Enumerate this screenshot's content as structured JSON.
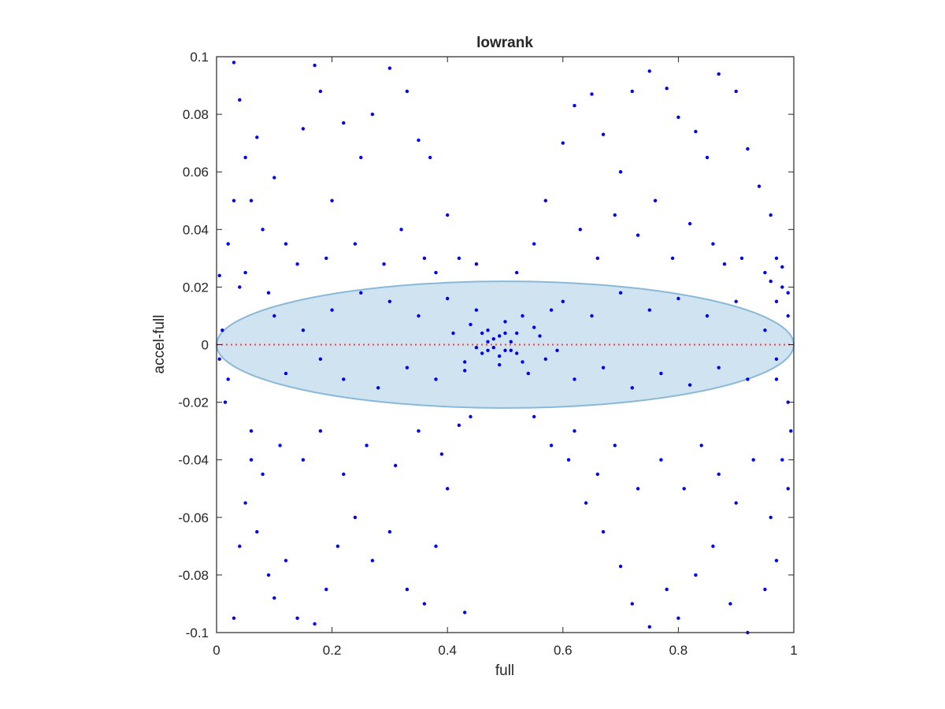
{
  "chart_data": {
    "type": "scatter",
    "title": "lowrank",
    "xlabel": "full",
    "ylabel": "accel-full",
    "xlim": [
      0,
      1
    ],
    "ylim": [
      -0.1,
      0.1
    ],
    "xticks": [
      0,
      0.2,
      0.4,
      0.6,
      0.8,
      1
    ],
    "xtick_labels": [
      "0",
      "0.2",
      "0.4",
      "0.6",
      "0.8",
      "1"
    ],
    "yticks": [
      -0.1,
      -0.08,
      -0.06,
      -0.04,
      -0.02,
      0,
      0.02,
      0.04,
      0.06,
      0.08,
      0.1
    ],
    "ytick_labels": [
      "-0.1",
      "-0.08",
      "-0.06",
      "-0.04",
      "-0.02",
      "0",
      "0.02",
      "0.04",
      "0.06",
      "0.08",
      "0.1"
    ],
    "grid": false,
    "legend": "none",
    "colors": {
      "points": "#0000ee",
      "ellipse_fill": "#cfe3f1",
      "ellipse_edge": "#8ab8d8",
      "zero_line": "#ff3b3b",
      "axes": "#262626"
    },
    "reference_line": {
      "y": 0,
      "style": "dotted"
    },
    "ellipse": {
      "cx": 0.5,
      "cy": 0,
      "rx": 0.5,
      "ry": 0.022
    },
    "series": [
      {
        "marker": "dot",
        "points": [
          [
            0.03,
            0.098
          ],
          [
            0.04,
            0.085
          ],
          [
            0.05,
            0.065
          ],
          [
            0.06,
            0.05
          ],
          [
            0.07,
            0.072
          ],
          [
            0.08,
            0.04
          ],
          [
            0.1,
            0.058
          ],
          [
            0.12,
            0.035
          ],
          [
            0.15,
            0.075
          ],
          [
            0.17,
            0.097
          ],
          [
            0.18,
            0.088
          ],
          [
            0.2,
            0.05
          ],
          [
            0.22,
            0.077
          ],
          [
            0.25,
            0.065
          ],
          [
            0.27,
            0.08
          ],
          [
            0.3,
            0.096
          ],
          [
            0.33,
            0.088
          ],
          [
            0.35,
            0.071
          ],
          [
            0.37,
            0.065
          ],
          [
            0.4,
            0.045
          ],
          [
            0.05,
            0.025
          ],
          [
            0.09,
            0.018
          ],
          [
            0.14,
            0.028
          ],
          [
            0.19,
            0.03
          ],
          [
            0.24,
            0.035
          ],
          [
            0.29,
            0.028
          ],
          [
            0.32,
            0.04
          ],
          [
            0.36,
            0.03
          ],
          [
            0.38,
            0.025
          ],
          [
            0.42,
            0.03
          ],
          [
            0.45,
            0.028
          ],
          [
            0.52,
            0.025
          ],
          [
            0.55,
            0.035
          ],
          [
            0.57,
            0.05
          ],
          [
            0.6,
            0.07
          ],
          [
            0.62,
            0.083
          ],
          [
            0.65,
            0.087
          ],
          [
            0.67,
            0.073
          ],
          [
            0.7,
            0.06
          ],
          [
            0.72,
            0.088
          ],
          [
            0.75,
            0.095
          ],
          [
            0.78,
            0.089
          ],
          [
            0.8,
            0.079
          ],
          [
            0.83,
            0.074
          ],
          [
            0.85,
            0.065
          ],
          [
            0.87,
            0.094
          ],
          [
            0.9,
            0.088
          ],
          [
            0.92,
            0.068
          ],
          [
            0.94,
            0.055
          ],
          [
            0.96,
            0.045
          ],
          [
            0.63,
            0.04
          ],
          [
            0.66,
            0.03
          ],
          [
            0.69,
            0.045
          ],
          [
            0.73,
            0.038
          ],
          [
            0.76,
            0.05
          ],
          [
            0.79,
            0.03
          ],
          [
            0.82,
            0.042
          ],
          [
            0.86,
            0.035
          ],
          [
            0.88,
            0.028
          ],
          [
            0.91,
            0.03
          ],
          [
            0.95,
            0.025
          ],
          [
            0.97,
            0.03
          ],
          [
            0.98,
            0.02
          ],
          [
            0.99,
            0.01
          ],
          [
            0.97,
            0.015
          ],
          [
            0.96,
            0.022
          ],
          [
            0.98,
            0.027
          ],
          [
            0.99,
            0.018
          ],
          [
            0.005,
            0.024
          ],
          [
            0.01,
            0.005
          ],
          [
            0.03,
            -0.095
          ],
          [
            0.04,
            -0.07
          ],
          [
            0.05,
            -0.055
          ],
          [
            0.06,
            -0.04
          ],
          [
            0.07,
            -0.065
          ],
          [
            0.09,
            -0.08
          ],
          [
            0.1,
            -0.088
          ],
          [
            0.12,
            -0.075
          ],
          [
            0.14,
            -0.095
          ],
          [
            0.17,
            -0.097
          ],
          [
            0.19,
            -0.085
          ],
          [
            0.21,
            -0.07
          ],
          [
            0.24,
            -0.06
          ],
          [
            0.27,
            -0.075
          ],
          [
            0.3,
            -0.065
          ],
          [
            0.33,
            -0.085
          ],
          [
            0.36,
            -0.09
          ],
          [
            0.38,
            -0.07
          ],
          [
            0.4,
            -0.05
          ],
          [
            0.43,
            -0.093
          ],
          [
            0.06,
            -0.03
          ],
          [
            0.08,
            -0.045
          ],
          [
            0.11,
            -0.035
          ],
          [
            0.15,
            -0.04
          ],
          [
            0.18,
            -0.03
          ],
          [
            0.22,
            -0.045
          ],
          [
            0.26,
            -0.035
          ],
          [
            0.31,
            -0.042
          ],
          [
            0.35,
            -0.03
          ],
          [
            0.39,
            -0.038
          ],
          [
            0.42,
            -0.028
          ],
          [
            0.44,
            -0.025
          ],
          [
            0.55,
            -0.025
          ],
          [
            0.58,
            -0.035
          ],
          [
            0.61,
            -0.04
          ],
          [
            0.64,
            -0.055
          ],
          [
            0.67,
            -0.065
          ],
          [
            0.7,
            -0.077
          ],
          [
            0.72,
            -0.09
          ],
          [
            0.75,
            -0.098
          ],
          [
            0.78,
            -0.085
          ],
          [
            0.8,
            -0.095
          ],
          [
            0.83,
            -0.08
          ],
          [
            0.86,
            -0.07
          ],
          [
            0.89,
            -0.09
          ],
          [
            0.92,
            -0.1
          ],
          [
            0.95,
            -0.085
          ],
          [
            0.97,
            -0.075
          ],
          [
            0.99,
            -0.05
          ],
          [
            0.995,
            -0.03
          ],
          [
            0.62,
            -0.03
          ],
          [
            0.66,
            -0.045
          ],
          [
            0.69,
            -0.035
          ],
          [
            0.73,
            -0.05
          ],
          [
            0.77,
            -0.04
          ],
          [
            0.81,
            -0.05
          ],
          [
            0.84,
            -0.035
          ],
          [
            0.87,
            -0.045
          ],
          [
            0.9,
            -0.055
          ],
          [
            0.93,
            -0.04
          ],
          [
            0.96,
            -0.06
          ],
          [
            0.98,
            -0.04
          ],
          [
            0.99,
            -0.02
          ],
          [
            0.97,
            -0.012
          ],
          [
            0.005,
            -0.005
          ],
          [
            0.02,
            -0.012
          ],
          [
            0.015,
            -0.02
          ],
          [
            0.02,
            0.035
          ],
          [
            0.03,
            0.05
          ],
          [
            0.04,
            0.02
          ],
          [
            0.1,
            0.01
          ],
          [
            0.15,
            0.005
          ],
          [
            0.2,
            0.012
          ],
          [
            0.25,
            0.018
          ],
          [
            0.3,
            0.015
          ],
          [
            0.35,
            0.01
          ],
          [
            0.4,
            0.016
          ],
          [
            0.45,
            0.012
          ],
          [
            0.47,
            0.005
          ],
          [
            0.48,
            0.002
          ],
          [
            0.5,
            0.008
          ],
          [
            0.52,
            0.004
          ],
          [
            0.53,
            0.01
          ],
          [
            0.55,
            0.006
          ],
          [
            0.58,
            0.012
          ],
          [
            0.6,
            0.015
          ],
          [
            0.65,
            0.01
          ],
          [
            0.7,
            0.018
          ],
          [
            0.75,
            0.012
          ],
          [
            0.8,
            0.016
          ],
          [
            0.85,
            0.01
          ],
          [
            0.9,
            0.015
          ],
          [
            0.95,
            0.005
          ],
          [
            0.12,
            -0.01
          ],
          [
            0.18,
            -0.005
          ],
          [
            0.22,
            -0.012
          ],
          [
            0.28,
            -0.015
          ],
          [
            0.33,
            -0.008
          ],
          [
            0.38,
            -0.012
          ],
          [
            0.43,
            -0.006
          ],
          [
            0.46,
            -0.003
          ],
          [
            0.49,
            -0.007
          ],
          [
            0.51,
            -0.002
          ],
          [
            0.54,
            -0.01
          ],
          [
            0.57,
            -0.005
          ],
          [
            0.62,
            -0.012
          ],
          [
            0.67,
            -0.008
          ],
          [
            0.72,
            -0.015
          ],
          [
            0.77,
            -0.01
          ],
          [
            0.82,
            -0.014
          ],
          [
            0.87,
            -0.008
          ],
          [
            0.92,
            -0.012
          ],
          [
            0.97,
            -0.005
          ],
          [
            0.47,
            0.001
          ],
          [
            0.48,
            -0.001
          ],
          [
            0.49,
            0.003
          ],
          [
            0.5,
            -0.002
          ],
          [
            0.46,
            0.004
          ],
          [
            0.51,
            0.001
          ],
          [
            0.49,
            -0.004
          ],
          [
            0.47,
            -0.002
          ],
          [
            0.5,
            0.004
          ],
          [
            0.45,
            -0.001
          ],
          [
            0.52,
            -0.003
          ],
          [
            0.44,
            0.007
          ],
          [
            0.53,
            -0.006
          ],
          [
            0.43,
            -0.009
          ],
          [
            0.56,
            0.003
          ],
          [
            0.41,
            0.004
          ],
          [
            0.59,
            -0.002
          ]
        ]
      }
    ]
  }
}
